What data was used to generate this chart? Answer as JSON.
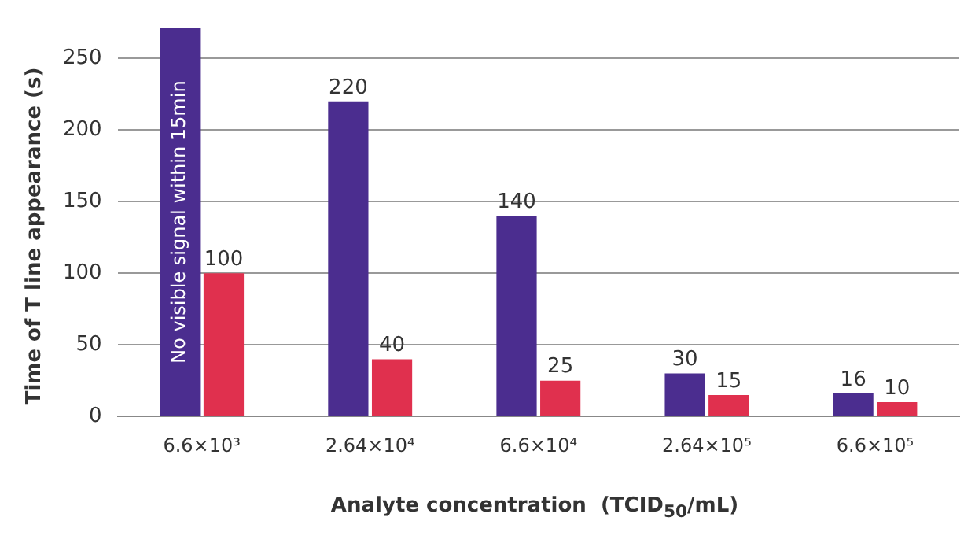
{
  "chart_data": {
    "type": "bar",
    "xlabel": "Analyte concentration  (TCID$_{50}$/mL)",
    "ylabel": "Time of T line appearance (s)",
    "categories": [
      "6.6×10³",
      "2.64×10⁴",
      "6.6×10⁴",
      "2.64×10⁵",
      "6.6×10⁵"
    ],
    "series": [
      {
        "color": "#4b2d8f",
        "values": [
          271,
          220,
          140,
          30,
          16
        ],
        "value_labels": [
          null,
          "220",
          "140",
          "30",
          "16"
        ]
      },
      {
        "color": "#e0304e",
        "values": [
          100,
          40,
          25,
          15,
          10
        ],
        "value_labels": [
          "100",
          "40",
          "25",
          "15",
          "10"
        ]
      }
    ],
    "ylim": [
      0,
      271
    ],
    "yticks": [
      0,
      50,
      100,
      150,
      200,
      250
    ],
    "grid": "y",
    "legend": false,
    "annotations": [
      "No visible signal within 15min"
    ]
  }
}
